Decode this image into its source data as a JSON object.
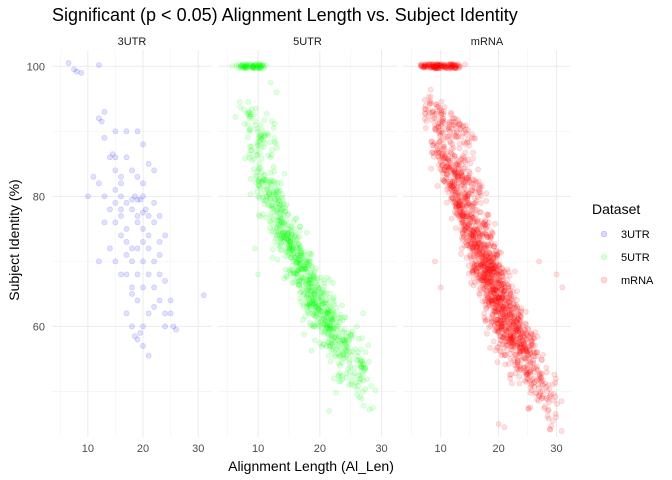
{
  "chart_data": {
    "type": "scatter",
    "title": "Significant (p < 0.05) Alignment Length vs. Subject Identity",
    "xlabel": "Alignment Length (Al_Len)",
    "ylabel": "Subject Identity (%)",
    "facets": [
      "3UTR",
      "5UTR",
      "mRNA"
    ],
    "xlim": [
      3.5,
      32.5
    ],
    "ylim": [
      43,
      102.5
    ],
    "x_ticks": [
      10,
      20,
      30
    ],
    "y_ticks": [
      60,
      80,
      100
    ],
    "grid": true,
    "legend": {
      "title": "Dataset",
      "position": "right",
      "entries": [
        {
          "name": "3UTR",
          "color": "#0000FF"
        },
        {
          "name": "5UTR",
          "color": "#00FF00"
        },
        {
          "name": "mRNA",
          "color": "#FF0000"
        }
      ]
    },
    "point_alpha": 0.12,
    "series": [
      {
        "name": "3UTR",
        "facet": "3UTR",
        "color": "#0000FF",
        "points": [
          [
            6.5,
            100.5
          ],
          [
            7.5,
            99.5
          ],
          [
            8,
            99.2
          ],
          [
            8.8,
            99
          ],
          [
            12,
            100.2
          ],
          [
            12,
            92
          ],
          [
            12.5,
            91.5
          ],
          [
            13,
            89
          ],
          [
            14,
            86
          ],
          [
            14.5,
            86.5
          ],
          [
            15,
            86
          ],
          [
            15,
            84
          ],
          [
            16,
            82
          ],
          [
            16,
            83
          ],
          [
            10,
            80
          ],
          [
            11,
            83
          ],
          [
            12,
            82
          ],
          [
            13,
            80
          ],
          [
            14,
            78
          ],
          [
            15,
            79
          ],
          [
            16,
            77
          ],
          [
            17,
            79
          ],
          [
            18,
            79.5
          ],
          [
            18.5,
            80
          ],
          [
            19,
            79.5
          ],
          [
            19.5,
            79.5
          ],
          [
            20,
            80
          ],
          [
            20.5,
            78
          ],
          [
            19,
            76
          ],
          [
            20,
            75
          ],
          [
            21,
            77
          ],
          [
            22,
            76
          ],
          [
            21,
            72
          ],
          [
            22,
            70
          ],
          [
            23,
            68
          ],
          [
            24,
            67
          ],
          [
            25,
            62
          ],
          [
            25.5,
            60
          ],
          [
            26,
            59.5
          ],
          [
            23,
            64
          ],
          [
            24,
            62
          ],
          [
            22,
            63
          ],
          [
            20,
            60
          ],
          [
            19,
            58
          ],
          [
            18.5,
            58.5
          ],
          [
            18,
            60
          ],
          [
            17,
            62
          ],
          [
            18,
            65
          ],
          [
            17,
            68
          ],
          [
            18,
            70
          ],
          [
            19,
            72
          ],
          [
            20,
            73
          ],
          [
            21,
            68
          ],
          [
            20,
            66
          ],
          [
            19,
            64
          ],
          [
            18,
            66
          ],
          [
            17,
            71
          ],
          [
            16,
            74
          ],
          [
            15,
            76
          ],
          [
            16,
            68
          ],
          [
            15,
            70
          ],
          [
            14,
            72
          ],
          [
            13,
            76
          ],
          [
            12,
            70
          ],
          [
            21,
            62
          ],
          [
            22,
            66
          ],
          [
            23,
            71
          ],
          [
            24,
            74
          ],
          [
            23,
            77
          ],
          [
            21,
            85
          ],
          [
            20,
            88
          ],
          [
            19,
            90
          ],
          [
            18,
            84
          ],
          [
            19,
            83
          ],
          [
            17,
            86
          ],
          [
            22,
            84
          ],
          [
            21,
            55.5
          ],
          [
            20,
            57
          ],
          [
            19.5,
            59
          ],
          [
            24,
            60
          ],
          [
            25,
            64
          ],
          [
            21,
            74
          ],
          [
            19,
            68
          ],
          [
            20,
            70
          ],
          [
            18,
            72
          ],
          [
            17,
            75
          ],
          [
            16,
            78
          ],
          [
            15,
            81
          ],
          [
            22,
            79
          ],
          [
            31,
            64.8
          ],
          [
            13,
            93
          ],
          [
            15,
            90
          ],
          [
            17,
            90
          ],
          [
            19,
            77
          ],
          [
            20,
            77.5
          ],
          [
            18,
            78
          ],
          [
            17,
            73
          ],
          [
            16,
            80
          ],
          [
            23,
            73
          ],
          [
            20,
            82
          ]
        ]
      },
      {
        "name": "5UTR",
        "facet": "5UTR",
        "color": "#00FF00",
        "bands": [
          {
            "x0": 7,
            "x1": 10.5,
            "y0": 100,
            "y1": 100,
            "spread": 0.7,
            "n": 70
          },
          {
            "x0": 7.5,
            "x1": 12.5,
            "y0": 88,
            "y1": 93,
            "spread": 1.5,
            "n": 60
          },
          {
            "x0": 8.5,
            "x1": 14.5,
            "y0": 78,
            "y1": 87,
            "spread": 1.6,
            "n": 75
          },
          {
            "x0": 9.5,
            "x1": 17,
            "y0": 70,
            "y1": 83,
            "spread": 1.8,
            "n": 95
          },
          {
            "x0": 11,
            "x1": 19.5,
            "y0": 64,
            "y1": 80,
            "spread": 2.0,
            "n": 120
          },
          {
            "x0": 13,
            "x1": 22,
            "y0": 60,
            "y1": 76,
            "spread": 2.2,
            "n": 140
          },
          {
            "x0": 15,
            "x1": 24.5,
            "y0": 56,
            "y1": 72,
            "spread": 2.4,
            "n": 150
          },
          {
            "x0": 17,
            "x1": 27,
            "y0": 53,
            "y1": 66,
            "spread": 2.6,
            "n": 130
          },
          {
            "x0": 19,
            "x1": 28.5,
            "y0": 50,
            "y1": 62,
            "spread": 2.8,
            "n": 90
          }
        ],
        "extra_points": [
          [
            21.5,
            47
          ],
          [
            13,
            96
          ],
          [
            12,
            97.5
          ],
          [
            26,
            60
          ],
          [
            27,
            62
          ],
          [
            9.5,
            72
          ],
          [
            10,
            68
          ]
        ]
      },
      {
        "name": "mRNA",
        "facet": "mRNA",
        "color": "#FF0000",
        "bands": [
          {
            "x0": 7,
            "x1": 13,
            "y0": 100,
            "y1": 100,
            "spread": 0.7,
            "n": 140
          },
          {
            "x0": 7.5,
            "x1": 15.5,
            "y0": 88,
            "y1": 94,
            "spread": 1.3,
            "n": 120
          },
          {
            "x0": 8.5,
            "x1": 17,
            "y0": 80,
            "y1": 89,
            "spread": 1.4,
            "n": 140
          },
          {
            "x0": 9.5,
            "x1": 19,
            "y0": 74,
            "y1": 86,
            "spread": 1.5,
            "n": 160
          },
          {
            "x0": 11,
            "x1": 20.5,
            "y0": 68,
            "y1": 82,
            "spread": 1.6,
            "n": 180
          },
          {
            "x0": 12.5,
            "x1": 22,
            "y0": 64,
            "y1": 78,
            "spread": 1.7,
            "n": 200
          },
          {
            "x0": 14,
            "x1": 23.5,
            "y0": 60,
            "y1": 74,
            "spread": 1.8,
            "n": 210
          },
          {
            "x0": 15.5,
            "x1": 25,
            "y0": 57,
            "y1": 70,
            "spread": 1.9,
            "n": 200
          },
          {
            "x0": 17,
            "x1": 26.5,
            "y0": 54,
            "y1": 66,
            "spread": 2.0,
            "n": 180
          },
          {
            "x0": 18.5,
            "x1": 28,
            "y0": 51,
            "y1": 62,
            "spread": 2.2,
            "n": 140
          },
          {
            "x0": 19.5,
            "x1": 30,
            "y0": 47,
            "y1": 60,
            "spread": 2.5,
            "n": 100
          }
        ],
        "extra_points": [
          [
            20,
            45
          ],
          [
            21,
            44.5
          ],
          [
            31,
            66
          ],
          [
            30,
            68
          ],
          [
            27,
            70
          ],
          [
            9,
            70
          ],
          [
            10,
            66
          ],
          [
            22,
            52
          ]
        ]
      }
    ]
  }
}
